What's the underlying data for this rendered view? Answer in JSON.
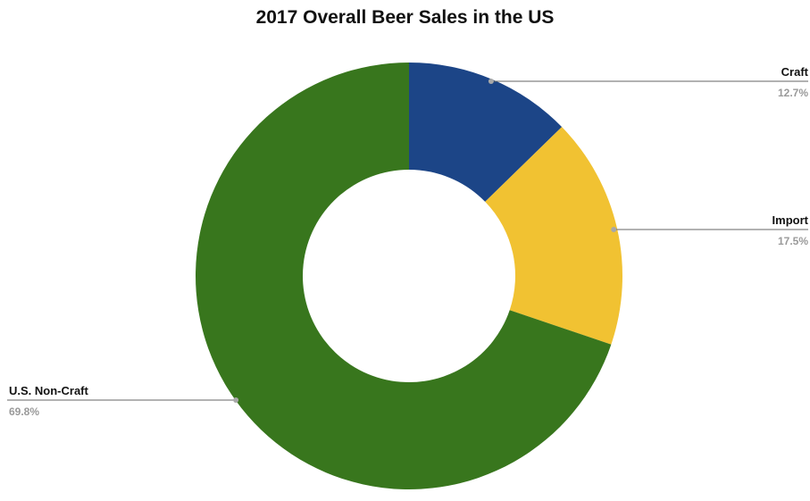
{
  "chart_data": {
    "type": "pie",
    "title": "2017 Overall Beer Sales in the US",
    "donut": true,
    "slices": [
      {
        "label": "Craft",
        "value": 12.7,
        "display": "12.7%",
        "color": "#1c4587"
      },
      {
        "label": "Import",
        "value": 17.5,
        "display": "17.5%",
        "color": "#f1c232"
      },
      {
        "label": "U.S. Non-Craft",
        "value": 69.8,
        "display": "69.8%",
        "color": "#38761d"
      }
    ],
    "legend": "none",
    "label_style": "callout lines with name and percentage"
  }
}
